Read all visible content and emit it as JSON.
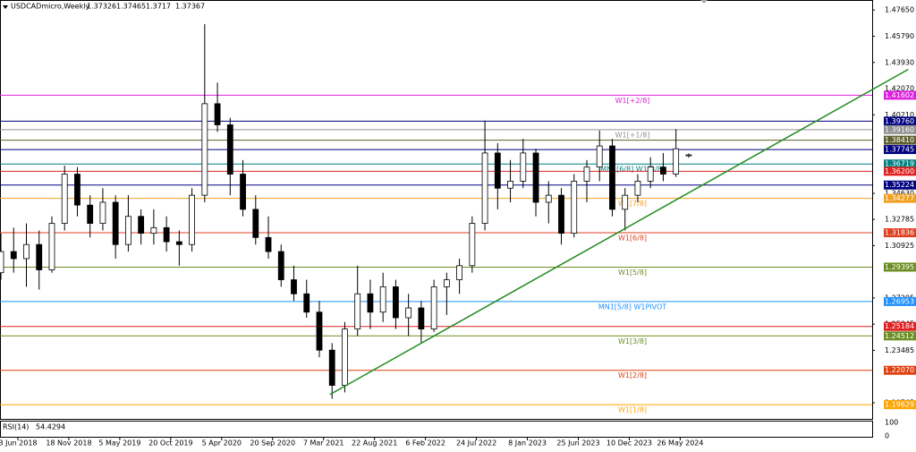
{
  "chart_data": {
    "type": "candlestick",
    "symbol": "USDCADmicro,Weekly",
    "x": [
      "2018-04-08",
      "2018-05-20",
      "2018-07-01",
      "2018-08-12",
      "2018-09-23",
      "2018-11-04",
      "2018-12-16",
      "2019-01-27",
      "2019-03-10",
      "2019-04-21",
      "2019-06-02",
      "2019-07-14",
      "2019-08-25",
      "2019-10-06",
      "2019-11-17",
      "2019-12-29",
      "2020-02-09",
      "2020-03-22",
      "2020-05-03",
      "2020-06-14",
      "2020-07-26",
      "2020-09-06",
      "2020-10-18",
      "2020-11-29",
      "2021-01-10",
      "2021-02-21",
      "2021-04-04",
      "2021-05-16",
      "2021-06-27",
      "2021-08-08",
      "2021-09-19",
      "2021-10-31",
      "2021-12-12",
      "2022-01-23",
      "2022-03-06",
      "2022-04-17",
      "2022-05-29",
      "2022-07-10",
      "2022-08-21",
      "2022-10-02",
      "2022-11-13",
      "2022-12-25",
      "2023-02-05",
      "2023-03-19",
      "2023-04-30",
      "2023-06-11",
      "2023-07-23",
      "2023-09-03",
      "2023-10-15",
      "2023-11-26",
      "2024-01-07",
      "2024-02-18",
      "2024-03-31",
      "2024-05-12",
      "2024-06-23"
    ],
    "ohlc": [
      [
        1.29,
        1.318,
        1.285,
        1.305
      ],
      [
        1.305,
        1.322,
        1.29,
        1.3
      ],
      [
        1.3,
        1.325,
        1.28,
        1.31
      ],
      [
        1.31,
        1.32,
        1.278,
        1.292
      ],
      [
        1.292,
        1.33,
        1.29,
        1.325
      ],
      [
        1.325,
        1.366,
        1.32,
        1.36
      ],
      [
        1.36,
        1.365,
        1.33,
        1.338
      ],
      [
        1.338,
        1.345,
        1.315,
        1.325
      ],
      [
        1.325,
        1.35,
        1.32,
        1.34
      ],
      [
        1.34,
        1.345,
        1.3,
        1.31
      ],
      [
        1.31,
        1.345,
        1.305,
        1.33
      ],
      [
        1.33,
        1.335,
        1.31,
        1.318
      ],
      [
        1.318,
        1.335,
        1.31,
        1.322
      ],
      [
        1.322,
        1.33,
        1.305,
        1.312
      ],
      [
        1.312,
        1.32,
        1.295,
        1.31
      ],
      [
        1.31,
        1.35,
        1.305,
        1.345
      ],
      [
        1.345,
        1.4665,
        1.34,
        1.41
      ],
      [
        1.41,
        1.425,
        1.39,
        1.395
      ],
      [
        1.395,
        1.4,
        1.345,
        1.36
      ],
      [
        1.36,
        1.37,
        1.33,
        1.335
      ],
      [
        1.335,
        1.345,
        1.31,
        1.315
      ],
      [
        1.315,
        1.33,
        1.3,
        1.305
      ],
      [
        1.305,
        1.31,
        1.28,
        1.285
      ],
      [
        1.285,
        1.295,
        1.27,
        1.275
      ],
      [
        1.275,
        1.285,
        1.258,
        1.262
      ],
      [
        1.262,
        1.27,
        1.23,
        1.235
      ],
      [
        1.235,
        1.24,
        1.2005,
        1.21
      ],
      [
        1.21,
        1.255,
        1.205,
        1.25
      ],
      [
        1.25,
        1.295,
        1.245,
        1.275
      ],
      [
        1.275,
        1.285,
        1.25,
        1.262
      ],
      [
        1.262,
        1.29,
        1.255,
        1.28
      ],
      [
        1.28,
        1.285,
        1.25,
        1.258
      ],
      [
        1.258,
        1.275,
        1.245,
        1.265
      ],
      [
        1.265,
        1.27,
        1.24,
        1.25
      ],
      [
        1.25,
        1.285,
        1.248,
        1.28
      ],
      [
        1.28,
        1.29,
        1.26,
        1.285
      ],
      [
        1.285,
        1.3,
        1.275,
        1.295
      ],
      [
        1.295,
        1.33,
        1.29,
        1.325
      ],
      [
        1.325,
        1.398,
        1.32,
        1.375
      ],
      [
        1.375,
        1.382,
        1.335,
        1.35
      ],
      [
        1.35,
        1.37,
        1.34,
        1.355
      ],
      [
        1.355,
        1.385,
        1.35,
        1.375
      ],
      [
        1.375,
        1.378,
        1.33,
        1.34
      ],
      [
        1.34,
        1.355,
        1.325,
        1.345
      ],
      [
        1.345,
        1.35,
        1.31,
        1.318
      ],
      [
        1.318,
        1.36,
        1.315,
        1.355
      ],
      [
        1.355,
        1.37,
        1.34,
        1.365
      ],
      [
        1.365,
        1.391,
        1.355,
        1.38
      ],
      [
        1.38,
        1.385,
        1.33,
        1.335
      ],
      [
        1.335,
        1.35,
        1.32,
        1.345
      ],
      [
        1.345,
        1.36,
        1.34,
        1.355
      ],
      [
        1.355,
        1.372,
        1.35,
        1.365
      ],
      [
        1.365,
        1.375,
        1.355,
        1.36
      ],
      [
        1.36,
        1.392,
        1.358,
        1.378
      ],
      [
        1.37326,
        1.37465,
        1.3717,
        1.37367
      ]
    ],
    "xlim": [
      "2018-04-05",
      "2026-02-18"
    ],
    "xticks": [
      {
        "value": "2018-06-03",
        "label": "3 Jun 2018"
      },
      {
        "value": "2018-11-18",
        "label": "18 Nov 2018"
      },
      {
        "value": "2019-05-05",
        "label": "5 May 2019"
      },
      {
        "value": "2019-10-20",
        "label": "20 Oct 2019"
      },
      {
        "value": "2020-04-05",
        "label": "5 Apr 2020"
      },
      {
        "value": "2020-09-20",
        "label": "20 Sep 2020"
      },
      {
        "value": "2021-03-07",
        "label": "7 Mar 2021"
      },
      {
        "value": "2021-08-22",
        "label": "22 Aug 2021"
      },
      {
        "value": "2022-02-06",
        "label": "6 Feb 2022"
      },
      {
        "value": "2022-07-24",
        "label": "24 Jul 2022"
      },
      {
        "value": "2023-01-08",
        "label": "8 Jan 2023"
      },
      {
        "value": "2023-06-25",
        "label": "25 Jun 2023"
      },
      {
        "value": "2023-12-10",
        "label": "10 Dec 2023"
      },
      {
        "value": "2024-05-26",
        "label": "26 May 2024"
      }
    ],
    "ylim": [
      1.1862,
      1.483
    ],
    "yticks": [
      {
        "value": 1.4765,
        "label": "1.47650"
      },
      {
        "value": 1.4579,
        "label": "1.45790"
      },
      {
        "value": 1.4393,
        "label": "1.43930"
      },
      {
        "value": 1.4207,
        "label": "1.42070"
      },
      {
        "value": 1.4021,
        "label": "1.40210"
      },
      {
        "value": 1.3463,
        "label": "1.34630"
      },
      1.32785,
      1.30925,
      1.27205,
      1.25345,
      1.23485,
      1.19765
    ],
    "levels": [
      {
        "price": 1.41602,
        "color": "#e020e0",
        "label": "W1[+2/8]"
      },
      {
        "price": {
          "value": 1.3976,
          "label": "1.39760"
        },
        "color": "#000080"
      },
      {
        "price": {
          "value": 1.3916,
          "label": "1.39160"
        },
        "color": "#909090",
        "label": "W1[+1/8]"
      },
      {
        "price": {
          "value": 1.3841,
          "label": "1.38410"
        },
        "color": "#5f5f30"
      },
      {
        "price": 1.37745,
        "color": "#000080"
      },
      {
        "price": 1.36719,
        "color": "#008080",
        "label": "MN1[6/8] W1[8/8]"
      },
      {
        "price": {
          "value": 1.362,
          "label": "1.36200"
        },
        "color": "#e02020"
      },
      {
        "price": 1.35224,
        "color": "#000080"
      },
      {
        "price": 1.34277,
        "color": "#f0a020",
        "label": "W1[7/8]"
      },
      {
        "price": 1.31836,
        "color": "#e04020",
        "label": "W1[6/8]"
      },
      {
        "price": 1.29395,
        "color": "#6b8e23",
        "label": "W1[5/8]"
      },
      {
        "price": 1.26953,
        "color": "#1e90ff",
        "label": "MN1[5/8] W1PIVOT"
      },
      {
        "price": 1.25184,
        "color": "#e02020"
      },
      {
        "price": 1.24512,
        "color": "#6b8e23",
        "label": "W1[3/8]"
      },
      {
        "price": {
          "value": 1.2207,
          "label": "1.22070"
        },
        "color": "#e04010",
        "label": "W1[2/8]"
      },
      {
        "price": 1.19629,
        "color": "#ffa500",
        "label": "W1[1/8]"
      }
    ],
    "trendline": {
      "color": "#228b22",
      "points": [
        [
          "2021-03-28",
          1.2035
        ],
        [
          "2026-06-17",
          1.4344
        ]
      ]
    },
    "rsi": {
      "label": "RSI(14)",
      "value": 54.4294,
      "yticks": [
        100,
        0
      ]
    }
  }
}
